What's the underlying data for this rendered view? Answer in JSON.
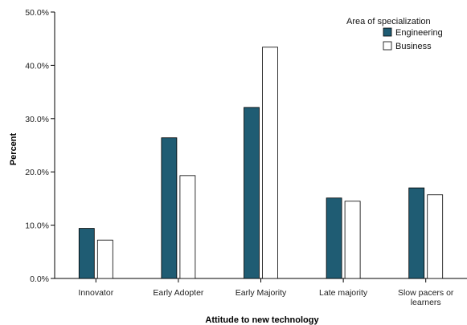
{
  "chart_data": {
    "type": "bar",
    "categories": [
      "Innovator",
      "Early Adopter",
      "Early Majority",
      "Late majority",
      "Slow pacers or learners"
    ],
    "category_lines": [
      [
        "Innovator"
      ],
      [
        "Early Adopter"
      ],
      [
        "Early Majority"
      ],
      [
        "Late majority"
      ],
      [
        "Slow pacers or",
        "learners"
      ]
    ],
    "series": [
      {
        "name": "Engineering",
        "values": [
          9.4,
          26.4,
          32.1,
          15.1,
          17.0
        ],
        "color": "#1f5c73"
      },
      {
        "name": "Business",
        "values": [
          7.2,
          19.3,
          43.4,
          14.5,
          15.7
        ],
        "color": "#ffffff"
      }
    ],
    "xlabel": "Attitude to new technology",
    "ylabel": "Percent",
    "ylim": [
      0,
      50
    ],
    "yticks": [
      0,
      10,
      20,
      30,
      40,
      50
    ],
    "ytick_labels": [
      "0.0%",
      "10.0%",
      "20.0%",
      "30.0%",
      "40.0%",
      "50.0%"
    ],
    "legend_title": "Area of specialization",
    "legend_position": "top-right",
    "grid": false
  }
}
